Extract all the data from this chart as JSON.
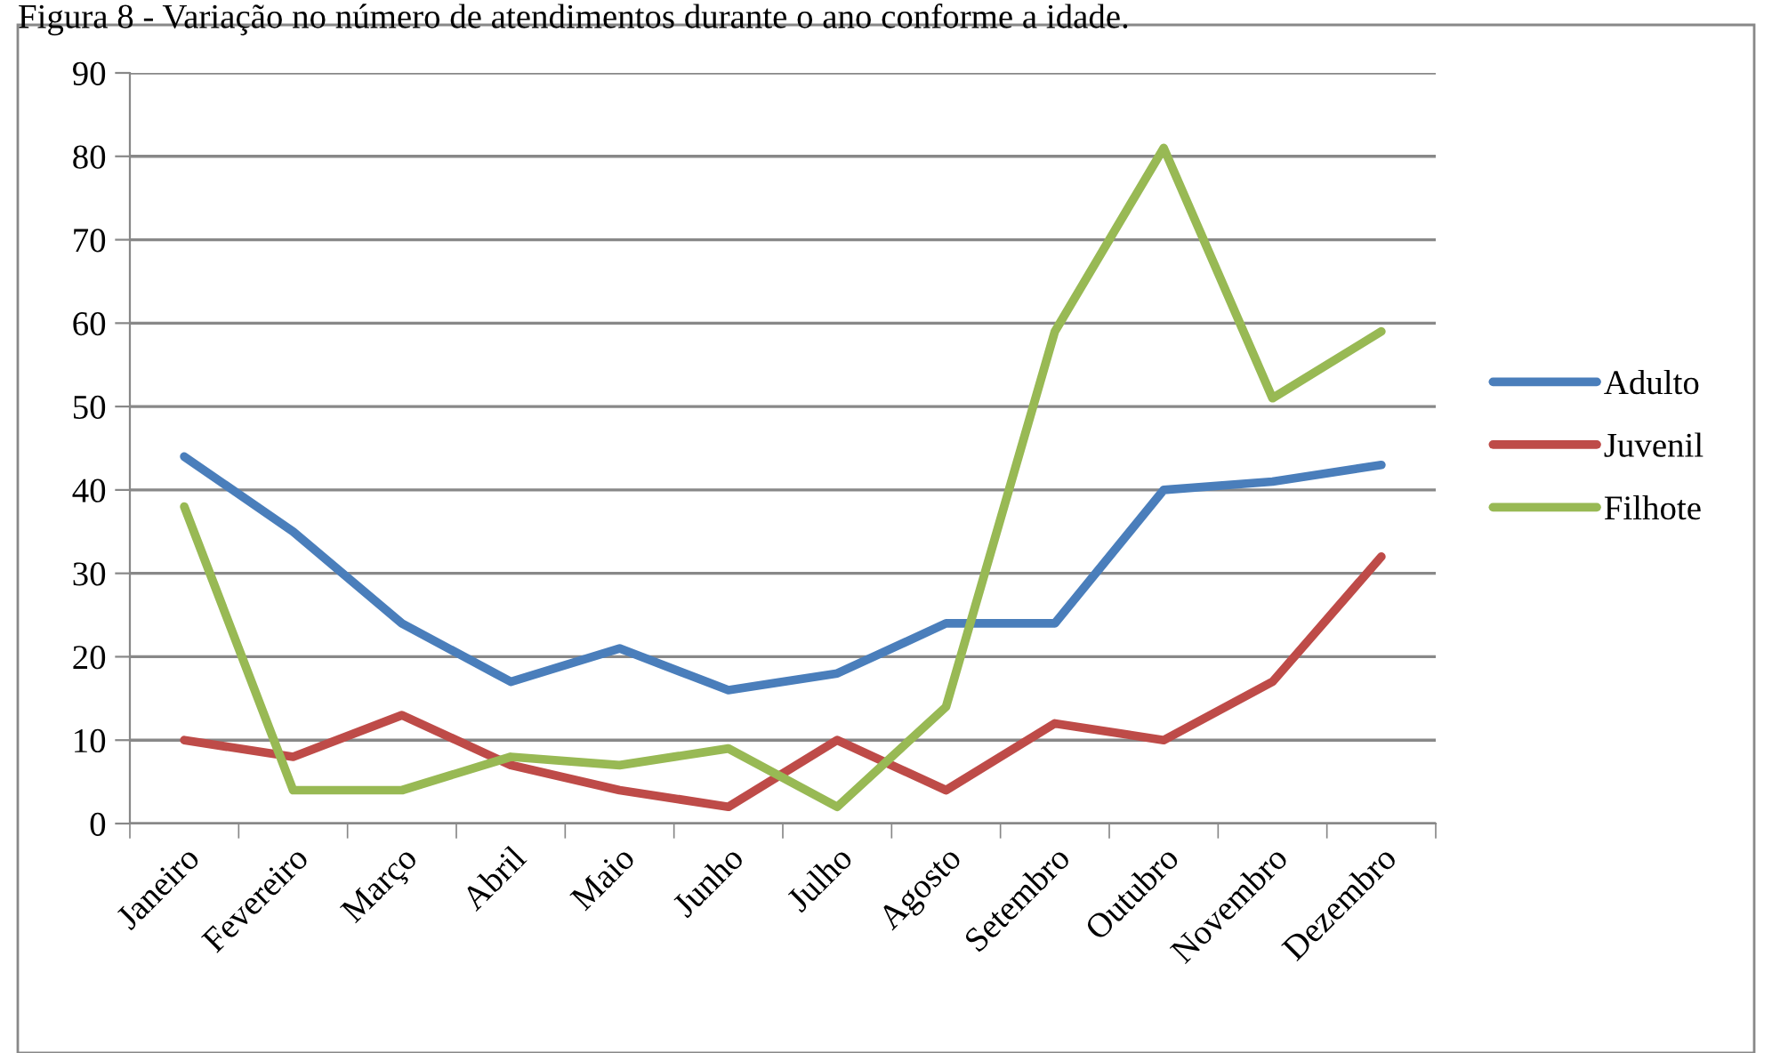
{
  "chart_data": {
    "type": "line",
    "title": "Figura 8 - Variação no número de atendimentos durante o ano conforme a idade.",
    "categories": [
      "Janeiro",
      "Fevereiro",
      "Março",
      "Abril",
      "Maio",
      "Junho",
      "Julho",
      "Agosto",
      "Setembro",
      "Outubro",
      "Novembro",
      "Dezembro"
    ],
    "series": [
      {
        "name": "Adulto",
        "color": "#4a7ebb",
        "values": [
          44,
          35,
          24,
          17,
          21,
          16,
          18,
          24,
          24,
          40,
          41,
          43
        ]
      },
      {
        "name": "Juvenil",
        "color": "#be4b48",
        "values": [
          10,
          8,
          13,
          7,
          4,
          2,
          10,
          4,
          12,
          10,
          17,
          32
        ]
      },
      {
        "name": "Filhote",
        "color": "#98b954",
        "values": [
          38,
          4,
          4,
          8,
          7,
          9,
          2,
          14,
          59,
          81,
          51,
          59
        ]
      }
    ],
    "ylim": [
      0,
      90
    ],
    "yticks": [
      0,
      10,
      20,
      30,
      40,
      50,
      60,
      70,
      80,
      90
    ],
    "grid": "y",
    "legend": "right",
    "marker": "none",
    "line_style": "solid"
  }
}
